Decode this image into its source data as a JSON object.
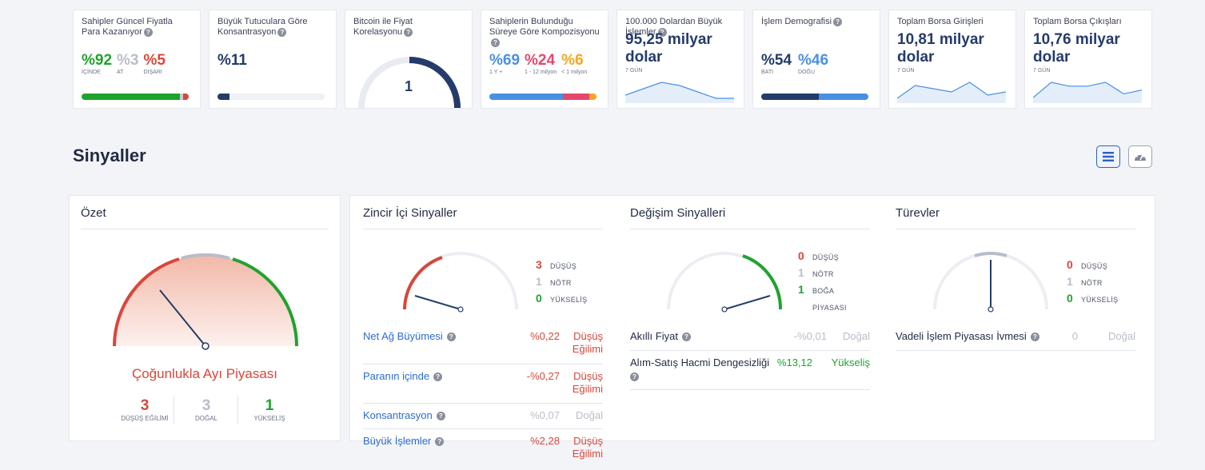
{
  "cards": {
    "profit": {
      "title": "Sahipler Güncel Fiyatla Para Kazanıyor",
      "v1": "%92",
      "l1": "İÇİNDE",
      "v2": "%3",
      "l2": "AT",
      "v3": "%5",
      "l3": "DIŞARI",
      "bar": [
        92,
        3,
        5
      ]
    },
    "concentration": {
      "title": "Büyük Tutuculara Göre Konsantrasyon",
      "value": "%11",
      "bar_fill": 11
    },
    "correlation": {
      "title": "Bitcoin ile Fiyat Korelasyonu",
      "value": "1"
    },
    "composition": {
      "title": "Sahiplerin Bulunduğu Süreye Göre Kompozisyonu",
      "v1": "%69",
      "l1": "1 Y +",
      "v2": "%24",
      "l2": "1 - 12 milyon",
      "v3": "%6",
      "l3": "< 1 milyon",
      "bar": [
        69,
        24,
        6
      ]
    },
    "large_tx": {
      "title": "100.000 Dolardan Büyük İşlemler",
      "value": "95,25 milyar dolar",
      "period": "7 GÜN",
      "spark": [
        2,
        4,
        6,
        5,
        3,
        1,
        1
      ]
    },
    "demographics": {
      "title": "İşlem Demografisi",
      "v1": "%54",
      "l1": "BATI",
      "v2": "%46",
      "l2": "DOĞU",
      "bar": [
        54,
        46
      ]
    },
    "inflows": {
      "title": "Toplam Borsa Girişleri",
      "value": "10,81 milyar dolar",
      "period": "7 GÜN",
      "spark": [
        1,
        5,
        4,
        3,
        6,
        2,
        3
      ]
    },
    "outflows": {
      "title": "Toplam Borsa Çıkışları",
      "value": "10,76 milyar dolar",
      "period": "7 GÜN",
      "spark": [
        1,
        5,
        4,
        4,
        5,
        2,
        3
      ]
    }
  },
  "section_title": "Sinyaller",
  "summary": {
    "title": "Özet",
    "verdict": "Çoğunlukla Ayı Piyasası",
    "bear_count": "3",
    "bear_label": "DÜŞÜŞ EĞİLİMİ",
    "neutral_count": "3",
    "neutral_label": "DOĞAL",
    "bull_count": "1",
    "bull_label": "YÜKSELİŞ"
  },
  "onchain": {
    "title": "Zincir İçi Sinyaller",
    "c1": "3",
    "l1": "DÜŞÜŞ",
    "c2": "1",
    "l2": "NÖTR",
    "c3": "0",
    "l3": "YÜKSELİŞ",
    "rows": [
      {
        "name": "Net Ağ Büyümesi",
        "value": "%0,22",
        "state": "Düşüş Eğilimi"
      },
      {
        "name": "Paranın içinde",
        "value": "-%0,27",
        "state": "Düşüş Eğilimi"
      },
      {
        "name": "Konsantrasyon",
        "value": "%0,07",
        "state": "Doğal"
      },
      {
        "name": "Büyük İşlemler",
        "value": "%2,28",
        "state": "Düşüş Eğilimi"
      }
    ]
  },
  "exchange": {
    "title": "Değişim Sinyalleri",
    "c1": "0",
    "l1": "DÜŞÜŞ",
    "c2": "1",
    "l2": "NÖTR",
    "c3": "1",
    "l3": "BOĞA PİYASASI",
    "rows": [
      {
        "name": "Akıllı Fiyat",
        "value": "-%0,01",
        "state": "Doğal"
      },
      {
        "name": "Alım-Satış Hacmi Dengesizliği",
        "value": "%13,12",
        "state": "Yükseliş"
      }
    ]
  },
  "derivatives": {
    "title": "Türevler",
    "c1": "0",
    "l1": "DÜŞÜŞ",
    "c2": "1",
    "l2": "NÖTR",
    "c3": "0",
    "l3": "YÜKSELİŞ",
    "rows": [
      {
        "name": "Vadeli İşlem Piyasası İvmesi",
        "value": "0",
        "state": "Doğal"
      }
    ]
  },
  "colors": {
    "bear": "#d8473a",
    "neutral": "#b8bdc8",
    "bull": "#1fa32c",
    "navy": "#243b6b",
    "link": "#2d6bd4"
  }
}
